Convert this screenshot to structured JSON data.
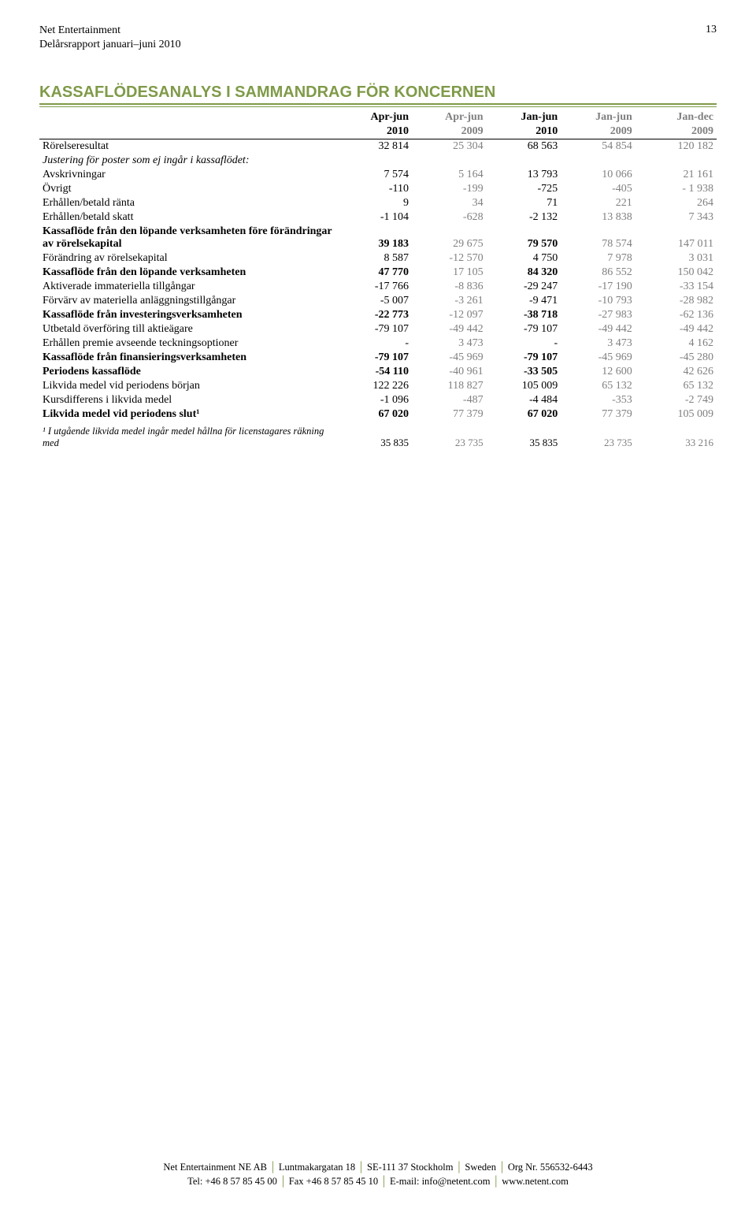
{
  "header": {
    "company": "Net Entertainment",
    "report_line": "Delårsrapport januari–juni 2010",
    "page_number": "13"
  },
  "title": "KASSAFLÖDESANALYS I SAMMANDRAG FÖR KONCERNEN",
  "columns": [
    {
      "l1": "Apr-jun",
      "l2": "2010",
      "grey": false
    },
    {
      "l1": "Apr-jun",
      "l2": "2009",
      "grey": true
    },
    {
      "l1": "Jan-jun",
      "l2": "2010",
      "grey": false
    },
    {
      "l1": "Jan-jun",
      "l2": "2009",
      "grey": true
    },
    {
      "l1": "Jan-dec",
      "l2": "2009",
      "grey": true
    }
  ],
  "rows": [
    {
      "label": "Rörelseresultat",
      "bold": false,
      "v": [
        "32 814",
        "25 304",
        "68 563",
        "54 854",
        "120 182"
      ],
      "g": [
        false,
        true,
        false,
        true,
        true
      ]
    },
    {
      "label": "Justering för poster som ej ingår i kassaflödet:",
      "ital": true,
      "nv": true
    },
    {
      "label": "Avskrivningar",
      "v": [
        "7 574",
        "5 164",
        "13 793",
        "10 066",
        "21 161"
      ],
      "g": [
        false,
        true,
        false,
        true,
        true
      ]
    },
    {
      "label": "Övrigt",
      "v": [
        "-110",
        "-199",
        "-725",
        "-405",
        "- 1 938"
      ],
      "g": [
        false,
        true,
        false,
        true,
        true
      ]
    },
    {
      "label": "Erhållen/betald ränta",
      "v": [
        "9",
        "34",
        "71",
        "221",
        "264"
      ],
      "g": [
        false,
        true,
        false,
        true,
        true
      ]
    },
    {
      "label": "Erhållen/betald skatt",
      "v": [
        "-1 104",
        "-628",
        "-2 132",
        "13 838",
        "7 343"
      ],
      "g": [
        false,
        true,
        false,
        true,
        true
      ]
    },
    {
      "label": "Kassaflöde från den löpande verksamheten före förändringar av rörelsekapital",
      "bold": true,
      "v": [
        "39 183",
        "29 675",
        "79 570",
        "78 574",
        "147 011"
      ],
      "g": [
        false,
        true,
        false,
        true,
        true
      ]
    },
    {
      "label": "Förändring av rörelsekapital",
      "sect": true,
      "v": [
        "8 587",
        "-12 570",
        "4 750",
        "7 978",
        "3 031"
      ],
      "g": [
        false,
        true,
        false,
        true,
        true
      ]
    },
    {
      "label": "Kassaflöde från den löpande verksamheten",
      "bold": true,
      "v": [
        "47 770",
        "17 105",
        "84 320",
        "86 552",
        "150 042"
      ],
      "g": [
        false,
        true,
        false,
        true,
        true
      ]
    },
    {
      "label": "Aktiverade immateriella tillgångar",
      "sect": true,
      "v": [
        "-17 766",
        "-8 836",
        "-29 247",
        "-17 190",
        "-33 154"
      ],
      "g": [
        false,
        true,
        false,
        true,
        true
      ]
    },
    {
      "label": "Förvärv av materiella anläggningstillgångar",
      "v": [
        "-5 007",
        "-3 261",
        "-9 471",
        "-10 793",
        "-28 982"
      ],
      "g": [
        false,
        true,
        false,
        true,
        true
      ]
    },
    {
      "label": "Kassaflöde från investeringsverksamheten",
      "bold": true,
      "v": [
        "-22 773",
        "-12 097",
        "-38 718",
        "-27 983",
        "-62 136"
      ],
      "g": [
        false,
        true,
        false,
        true,
        true
      ]
    },
    {
      "label": "Utbetald överföring till aktieägare",
      "sect": true,
      "v": [
        "-79 107",
        "-49 442",
        "-79 107",
        "-49 442",
        "-49 442"
      ],
      "g": [
        false,
        true,
        false,
        true,
        true
      ]
    },
    {
      "label": "Erhållen premie avseende teckningsoptioner",
      "v": [
        "-",
        "3 473",
        "-",
        "3 473",
        "4 162"
      ],
      "g": [
        false,
        true,
        false,
        true,
        true
      ]
    },
    {
      "label": "Kassaflöde från finansieringsverksamheten",
      "bold": true,
      "v": [
        "-79 107",
        "-45 969",
        "-79 107",
        "-45 969",
        "-45 280"
      ],
      "g": [
        false,
        true,
        false,
        true,
        true
      ]
    },
    {
      "label": "Periodens kassaflöde",
      "bold": true,
      "sect": true,
      "v": [
        "-54 110",
        "-40 961",
        "-33 505",
        "12 600",
        "42 626"
      ],
      "g": [
        false,
        true,
        false,
        true,
        true
      ]
    },
    {
      "label": "Likvida medel vid periodens början",
      "sect": true,
      "v": [
        "122 226",
        "118 827",
        "105 009",
        "65 132",
        "65 132"
      ],
      "g": [
        false,
        true,
        false,
        true,
        true
      ]
    },
    {
      "label": "Kursdifferens i likvida medel",
      "v": [
        "-1 096",
        "-487",
        "-4 484",
        "-353",
        "-2 749"
      ],
      "g": [
        false,
        true,
        false,
        true,
        true
      ]
    },
    {
      "label": "Likvida medel vid periodens slut¹",
      "bold": true,
      "v": [
        "67 020",
        "77 379",
        "67 020",
        "77 379",
        "105 009"
      ],
      "g": [
        false,
        true,
        false,
        true,
        true
      ]
    }
  ],
  "footnote": {
    "label": "¹ I utgående likvida medel ingår medel hållna för licenstagares räkning med",
    "v": [
      "35 835",
      "23 735",
      "35 835",
      "23 735",
      "33 216"
    ],
    "g": [
      false,
      true,
      false,
      true,
      true
    ]
  },
  "footer": {
    "l1": [
      "Net Entertainment NE AB",
      "Luntmakargatan 18",
      "SE-111 37 Stockholm",
      "Sweden",
      "Org Nr. 556532-6443"
    ],
    "l2": [
      "Tel: +46 8 57 85 45 00",
      "Fax +46 8 57 85 45 10",
      "E-mail: info@netent.com",
      "www.netent.com"
    ]
  }
}
